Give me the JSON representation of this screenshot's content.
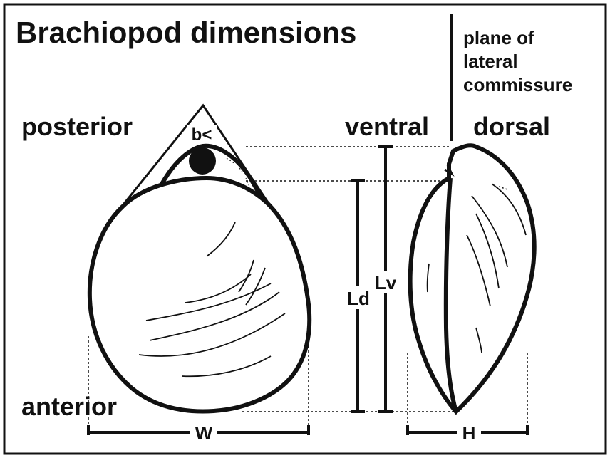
{
  "title": "Brachiopod dimensions",
  "plane_label": [
    "plane of",
    "lateral",
    "commissure"
  ],
  "orientation": {
    "posterior": "posterior",
    "anterior": "anterior",
    "ventral": "ventral",
    "dorsal": "dorsal"
  },
  "dimensions": {
    "beak_angle": "b<",
    "dorsal_length": "Ld",
    "ventral_length": "Lv",
    "width": "W",
    "height": "H"
  },
  "colors": {
    "ink": "#111111",
    "background": "#ffffff"
  }
}
